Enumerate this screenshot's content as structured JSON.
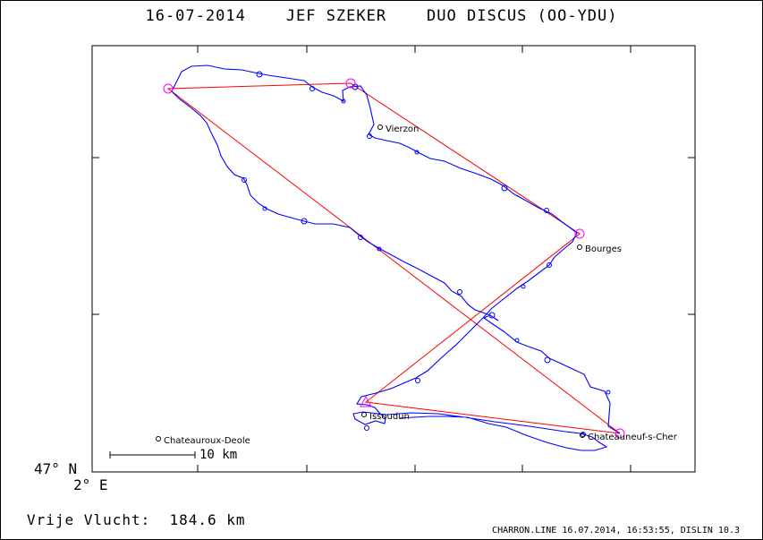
{
  "header": {
    "title": "16-07-2014    JEF SZEKER    DUO DISCUS (OO-YDU)"
  },
  "axes": {
    "lat_label": "47° N",
    "lon_label": "2° E"
  },
  "scale_bar": {
    "label": "10 km"
  },
  "summary": {
    "distance_text": "Vrije Vlucht:  184.6 km"
  },
  "footer": {
    "text": "CHARRON.LINE 16.07.2014, 16:53:55, DISLIN 10.3"
  },
  "cities": [
    {
      "name": "Vierzon"
    },
    {
      "name": "Bourges"
    },
    {
      "name": "Issoudun"
    },
    {
      "name": "Chateauroux-Deole"
    },
    {
      "name": "Chateauneuf-s-Cher"
    }
  ],
  "colors": {
    "track": "#0000ff",
    "task": "#ff0000",
    "turnpoint": "#ff00ff",
    "axis": "#000000"
  }
}
